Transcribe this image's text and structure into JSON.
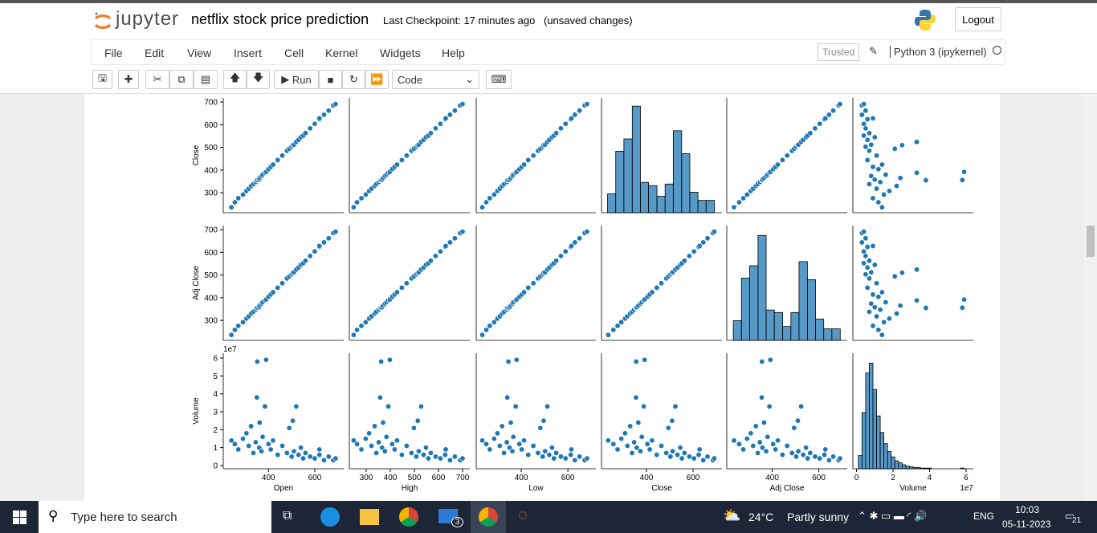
{
  "header": {
    "logo_text": "jupyter",
    "notebook_name": "netflix stock price prediction",
    "checkpoint": "Last Checkpoint: 17 minutes ago",
    "unsaved": "(unsaved changes)",
    "logout": "Logout"
  },
  "menu": {
    "items": [
      "File",
      "Edit",
      "View",
      "Insert",
      "Cell",
      "Kernel",
      "Widgets",
      "Help"
    ],
    "trusted": "Trusted",
    "kernel": "Python 3 (ipykernel)"
  },
  "toolbar": {
    "run": "Run",
    "cell_type": "Code"
  },
  "chart_data": {
    "type": "pairplot",
    "color": "#1f77b4",
    "variables": [
      {
        "name": "Open",
        "values": [
          255,
          270,
          290,
          305,
          315,
          325,
          335,
          345,
          350,
          352,
          360,
          362,
          370,
          375,
          385,
          390,
          400,
          410,
          420,
          440,
          460,
          480,
          490,
          500,
          505,
          510,
          520,
          530,
          540,
          550,
          560,
          580,
          600,
          620,
          640,
          660,
          680,
          690,
          240,
          620
        ],
        "xlim": [
          205,
          725
        ],
        "xticks": [
          400,
          600
        ]
      },
      {
        "name": "High",
        "values": [
          262,
          280,
          298,
          312,
          322,
          335,
          342,
          352,
          358,
          362,
          366,
          370,
          378,
          384,
          392,
          398,
          408,
          418,
          428,
          448,
          468,
          488,
          498,
          508,
          514,
          518,
          528,
          538,
          548,
          558,
          568,
          588,
          608,
          628,
          648,
          668,
          690,
          700,
          248,
          630
        ],
        "xlim": [
          230,
          730
        ],
        "xticks": [
          300,
          400,
          500,
          600,
          700
        ]
      },
      {
        "name": "Low",
        "values": [
          250,
          265,
          284,
          298,
          308,
          318,
          326,
          338,
          340,
          345,
          350,
          355,
          362,
          366,
          376,
          380,
          392,
          402,
          412,
          430,
          452,
          472,
          482,
          492,
          496,
          502,
          512,
          520,
          532,
          540,
          550,
          570,
          590,
          612,
          630,
          650,
          672,
          682,
          233,
          615
        ],
        "xlim": [
          207,
          720
        ],
        "xticks": [
          400,
          600
        ]
      },
      {
        "name": "Close",
        "values": [
          258,
          276,
          292,
          308,
          318,
          330,
          338,
          347,
          355,
          356,
          358,
          365,
          374,
          380,
          388,
          392,
          404,
          414,
          424,
          444,
          464,
          485,
          494,
          503,
          510,
          512,
          524,
          533,
          545,
          552,
          563,
          584,
          604,
          624,
          644,
          662,
          685,
          691,
          236,
          628
        ],
        "xlim": [
          207,
          724
        ],
        "xticks": [
          400,
          600
        ],
        "ylim": [
          212,
          718
        ],
        "yticks": [
          300,
          400,
          500,
          600,
          700
        ],
        "hist": {
          "bins": [
            233,
            268,
            303,
            339,
            374,
            409,
            445,
            480,
            515,
            551,
            586,
            621,
            656,
            692
          ],
          "counts": [
            46,
            150,
            180,
            260,
            74,
            66,
            40,
            70,
            200,
            144,
            50,
            30,
            30
          ],
          "ylim": [
            0,
            280
          ]
        }
      },
      {
        "name": "Adj Close",
        "values": [
          258,
          276,
          292,
          308,
          318,
          330,
          338,
          347,
          355,
          356,
          358,
          365,
          374,
          380,
          388,
          392,
          404,
          414,
          424,
          444,
          464,
          485,
          494,
          503,
          510,
          512,
          524,
          533,
          545,
          552,
          563,
          584,
          604,
          624,
          644,
          662,
          685,
          691,
          236,
          628
        ],
        "xlim": [
          205,
          722
        ],
        "xticks": [
          400,
          600
        ],
        "ylim": [
          212,
          718
        ],
        "yticks": [
          300,
          400,
          500,
          600,
          700
        ],
        "hist": {
          "bins": [
            233,
            268,
            303,
            339,
            374,
            409,
            445,
            480,
            515,
            551,
            586,
            621,
            656,
            692
          ],
          "counts": [
            48,
            152,
            182,
            256,
            74,
            68,
            34,
            68,
            192,
            148,
            52,
            28,
            28
          ],
          "ylim": [
            0,
            280
          ]
        }
      },
      {
        "name": "Volume",
        "values": [
          1.2,
          0.9,
          1.5,
          1.8,
          1.1,
          2.2,
          0.7,
          1.3,
          3.8,
          5.8,
          1.0,
          2.4,
          0.8,
          1.6,
          3.3,
          5.9,
          1.2,
          0.9,
          1.4,
          0.6,
          1.1,
          0.7,
          2.1,
          0.5,
          2.5,
          0.8,
          3.3,
          0.6,
          1.0,
          0.4,
          0.7,
          0.5,
          0.4,
          0.6,
          0.3,
          0.5,
          0.3,
          0.4,
          1.4,
          0.9
        ],
        "xlim": [
          -0.2,
          6.4
        ],
        "xticks": [
          0,
          2,
          4,
          6
        ],
        "ylim": [
          -0.18,
          6.27
        ],
        "yticks": [
          0,
          1,
          2,
          3,
          4,
          5,
          6
        ],
        "offset": "1e7",
        "hist": {
          "bins": [
            0.1,
            0.3,
            0.5,
            0.7,
            0.9,
            1.1,
            1.3,
            1.5,
            1.7,
            1.9,
            2.1,
            2.3,
            2.5,
            2.7,
            2.9,
            3.1,
            3.3,
            3.5,
            3.7,
            3.9,
            4.1,
            4.3,
            4.5,
            4.7,
            4.9,
            5.1,
            5.3,
            5.5,
            5.7,
            5.9,
            6.1
          ],
          "counts": [
            20,
            85,
            145,
            160,
            120,
            80,
            55,
            38,
            26,
            18,
            12,
            9,
            6,
            4,
            3,
            2,
            2,
            1,
            1,
            1,
            0,
            0,
            0,
            0,
            0,
            0,
            0,
            0,
            1,
            0
          ],
          "ylim": [
            0,
            175
          ]
        }
      }
    ]
  },
  "taskbar": {
    "search": "Type here to search",
    "mail_badge": "3",
    "temperature": "24°C",
    "weather": "Partly sunny",
    "language": "ENG",
    "time": "10:03",
    "date": "05-11-2023",
    "notifications": "21"
  }
}
